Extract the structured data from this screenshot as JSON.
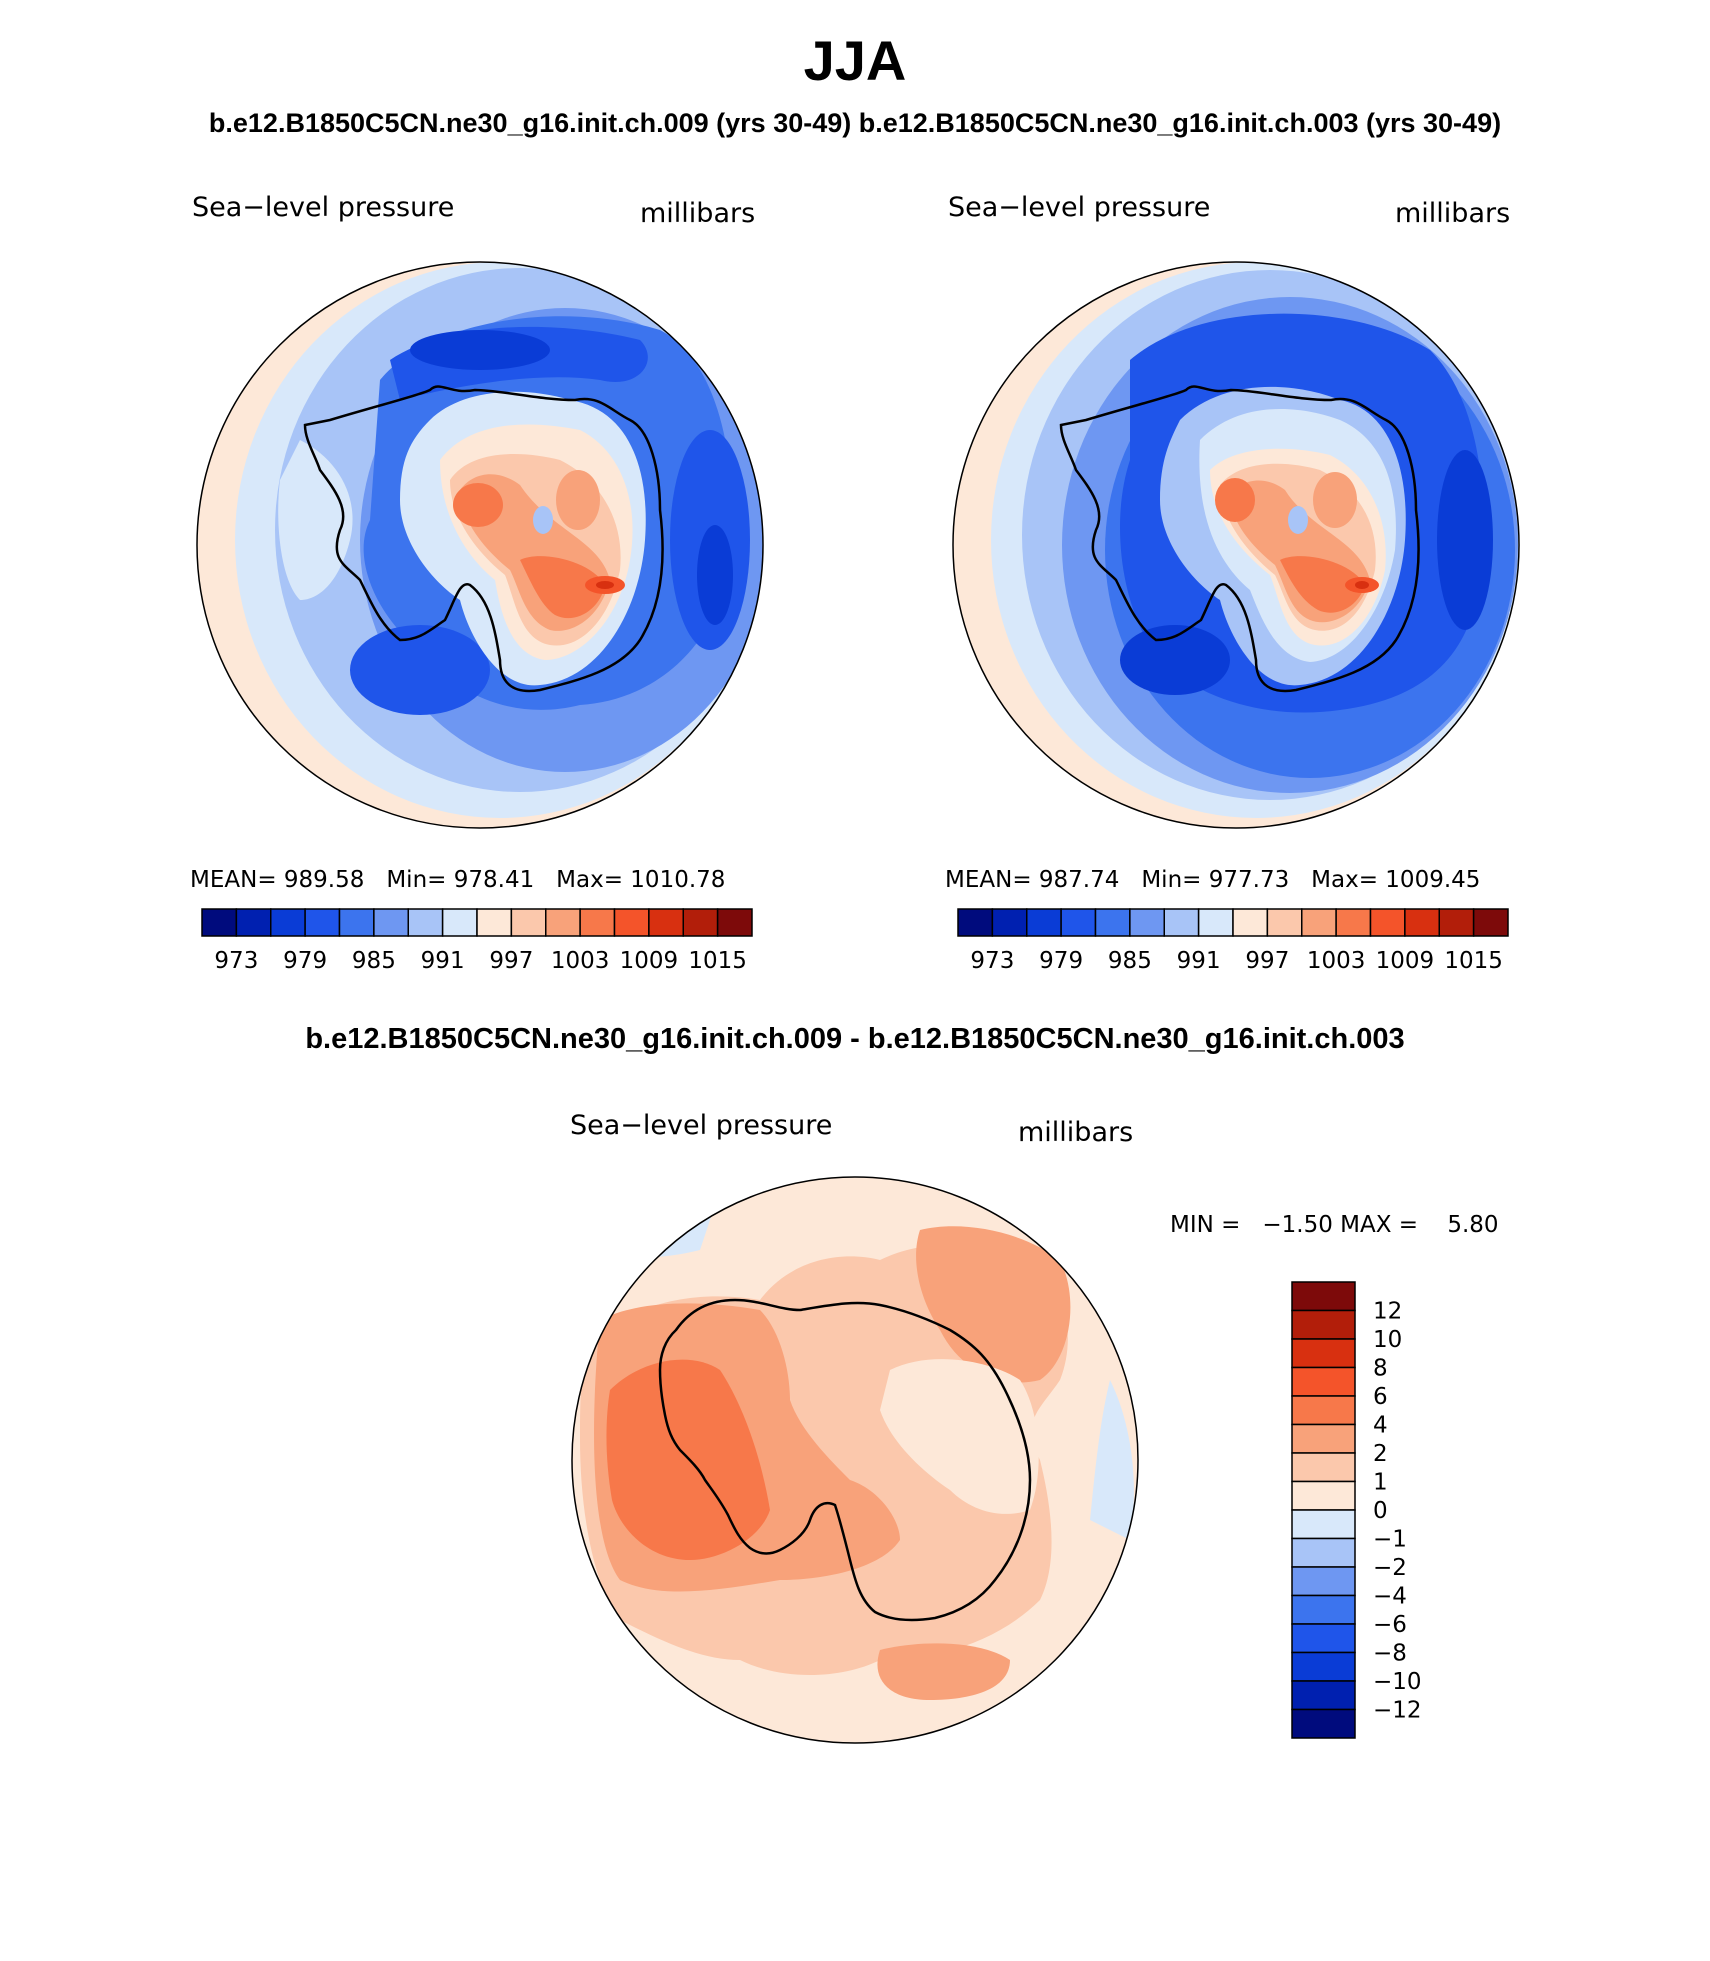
{
  "season": "JJA",
  "runs_title": "b.e12.B1850C5CN.ne30_g16.init.ch.009 (yrs 30-49)  b.e12.B1850C5CN.ne30_g16.init.ch.003 (yrs 30-49)",
  "diff_title": "b.e12.B1850C5CN.ne30_g16.init.ch.009 - b.e12.B1850C5CN.ne30_g16.init.ch.003",
  "panels": [
    {
      "label": "Sea−level pressure",
      "units": "millibars",
      "mean_label": "MEAN=",
      "mean": "989.58",
      "min_label": "Min=",
      "min": "978.41",
      "max_label": "Max=",
      "max": "1010.78"
    },
    {
      "label": "Sea−level pressure",
      "units": "millibars",
      "mean_label": "MEAN=",
      "mean": "987.74",
      "min_label": "Min=",
      "min": "977.73",
      "max_label": "Max=",
      "max": "1009.45"
    }
  ],
  "diff_panel": {
    "label": "Sea−level pressure",
    "units": "millibars",
    "min_label": "MIN =",
    "min": "−1.50",
    "max_label": "MAX =",
    "max": "5.80"
  },
  "colorbar_ticks": [
    "973",
    "979",
    "985",
    "991",
    "997",
    "1003",
    "1009",
    "1015"
  ],
  "colorbar_colors": [
    "#000b7d",
    "#0020b0",
    "#0a3cd6",
    "#1f55ea",
    "#3c74ee",
    "#6e97f2",
    "#a8c4f7",
    "#d8e8fa",
    "#fde8d8",
    "#fbc8ac",
    "#f8a27a",
    "#f7784a",
    "#f4542a",
    "#d83010",
    "#b21e0a",
    "#7d0a0a"
  ],
  "diff_ticks": [
    "12",
    "10",
    "8",
    "6",
    "4",
    "2",
    "1",
    "0",
    "−1",
    "−2",
    "−4",
    "−6",
    "−8",
    "−10",
    "−12"
  ],
  "diff_colors": [
    "#7d0a0a",
    "#b21e0a",
    "#d83010",
    "#f4542a",
    "#f7784a",
    "#f8a27a",
    "#fbc8ac",
    "#fde8d8",
    "#d8e8fa",
    "#a8c4f7",
    "#6e97f2",
    "#3c74ee",
    "#1f55ea",
    "#0a3cd6",
    "#0020b0",
    "#000b7d"
  ],
  "colors": {
    "outline": "#000000",
    "background": "#ffffff"
  }
}
